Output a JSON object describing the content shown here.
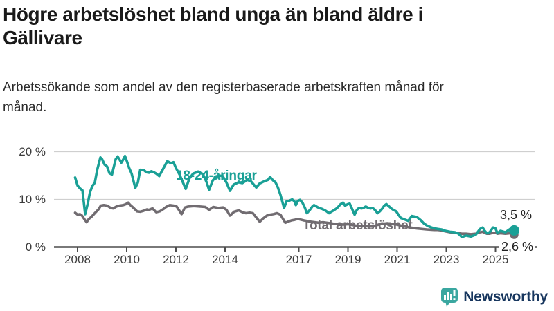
{
  "page": {
    "title": "Högre arbetslöshet bland unga än bland äldre i Gällivare",
    "subtitle": "Arbetssökande som andel av den registerbaserade arbetskraften månad för månad."
  },
  "colors": {
    "youth": "#1aa096",
    "total": "#716c71",
    "grid": "#cfcfcf",
    "axis": "#4d4d4d",
    "tick_text": "#3c3c3c",
    "logo_teal": "#3aa7a0",
    "logo_text": "#17365e"
  },
  "chart_data": {
    "type": "line",
    "x_ticks": [
      2008,
      2010,
      2012,
      2014,
      2017,
      2019,
      2021,
      2023,
      2025
    ],
    "y_ticks": [
      {
        "value": 0,
        "label": "0 %"
      },
      {
        "value": 10,
        "label": "10 %"
      },
      {
        "value": 20,
        "label": "20 %"
      }
    ],
    "xlim": [
      2007.9,
      2025.9
    ],
    "ylim": [
      0,
      21
    ],
    "grid": true,
    "legend_position": "inline-labels",
    "series": [
      {
        "name": "18-24-åringar",
        "color": "#1aa096",
        "end_label": "3,5 %",
        "end_value": 3.5,
        "points": [
          [
            2007.9,
            14.6
          ],
          [
            2008.0,
            12.9
          ],
          [
            2008.1,
            12.3
          ],
          [
            2008.2,
            11.9
          ],
          [
            2008.31,
            6.9
          ],
          [
            2008.42,
            9.2
          ],
          [
            2008.5,
            11.4
          ],
          [
            2008.6,
            12.8
          ],
          [
            2008.7,
            13.5
          ],
          [
            2008.8,
            16.2
          ],
          [
            2008.93,
            18.8
          ],
          [
            2009.0,
            18.4
          ],
          [
            2009.1,
            17.3
          ],
          [
            2009.2,
            16.9
          ],
          [
            2009.3,
            15.5
          ],
          [
            2009.4,
            15.2
          ],
          [
            2009.55,
            18.4
          ],
          [
            2009.63,
            19.0
          ],
          [
            2009.7,
            18.4
          ],
          [
            2009.78,
            17.7
          ],
          [
            2009.85,
            18.3
          ],
          [
            2009.93,
            19.1
          ],
          [
            2010.0,
            18.1
          ],
          [
            2010.1,
            16.6
          ],
          [
            2010.2,
            15.4
          ],
          [
            2010.35,
            12.4
          ],
          [
            2010.45,
            13.5
          ],
          [
            2010.55,
            16.2
          ],
          [
            2010.7,
            16.1
          ],
          [
            2010.8,
            15.7
          ],
          [
            2010.9,
            15.6
          ],
          [
            2011.0,
            15.9
          ],
          [
            2011.1,
            15.7
          ],
          [
            2011.2,
            15.4
          ],
          [
            2011.32,
            14.9
          ],
          [
            2011.5,
            16.6
          ],
          [
            2011.65,
            18.0
          ],
          [
            2011.8,
            17.6
          ],
          [
            2011.9,
            17.8
          ],
          [
            2012.0,
            16.6
          ],
          [
            2012.15,
            15.2
          ],
          [
            2012.3,
            13.4
          ],
          [
            2012.4,
            12.2
          ],
          [
            2012.55,
            14.4
          ],
          [
            2012.7,
            15.4
          ],
          [
            2012.9,
            15.8
          ],
          [
            2013.1,
            15.3
          ],
          [
            2013.25,
            13.6
          ],
          [
            2013.35,
            12.0
          ],
          [
            2013.5,
            14.0
          ],
          [
            2013.7,
            15.0
          ],
          [
            2013.9,
            14.9
          ],
          [
            2014.05,
            13.6
          ],
          [
            2014.2,
            11.8
          ],
          [
            2014.35,
            13.1
          ],
          [
            2014.55,
            13.6
          ],
          [
            2014.7,
            13.4
          ],
          [
            2014.9,
            14.1
          ],
          [
            2015.05,
            13.8
          ],
          [
            2015.27,
            12.5
          ],
          [
            2015.4,
            13.3
          ],
          [
            2015.55,
            13.7
          ],
          [
            2015.75,
            14.1
          ],
          [
            2015.83,
            14.7
          ],
          [
            2015.95,
            14.0
          ],
          [
            2016.05,
            13.6
          ],
          [
            2016.15,
            12.5
          ],
          [
            2016.25,
            11.0
          ],
          [
            2016.4,
            8.2
          ],
          [
            2016.5,
            9.6
          ],
          [
            2016.6,
            9.7
          ],
          [
            2016.73,
            10.0
          ],
          [
            2016.82,
            9.6
          ],
          [
            2016.88,
            8.8
          ],
          [
            2016.96,
            9.7
          ],
          [
            2017.05,
            9.9
          ],
          [
            2017.15,
            9.3
          ],
          [
            2017.25,
            8.2
          ],
          [
            2017.33,
            7.1
          ],
          [
            2017.45,
            7.8
          ],
          [
            2017.55,
            8.5
          ],
          [
            2017.62,
            8.8
          ],
          [
            2017.72,
            8.5
          ],
          [
            2017.82,
            8.2
          ],
          [
            2017.95,
            8.0
          ],
          [
            2018.1,
            7.6
          ],
          [
            2018.23,
            7.1
          ],
          [
            2018.32,
            7.4
          ],
          [
            2018.45,
            7.8
          ],
          [
            2018.56,
            8.2
          ],
          [
            2018.7,
            9.0
          ],
          [
            2018.8,
            9.3
          ],
          [
            2018.88,
            8.7
          ],
          [
            2019.0,
            9.0
          ],
          [
            2019.07,
            9.1
          ],
          [
            2019.15,
            8.2
          ],
          [
            2019.27,
            6.8
          ],
          [
            2019.36,
            7.8
          ],
          [
            2019.45,
            8.2
          ],
          [
            2019.55,
            8.1
          ],
          [
            2019.63,
            8.2
          ],
          [
            2019.72,
            8.5
          ],
          [
            2019.83,
            8.2
          ],
          [
            2019.92,
            8.1
          ],
          [
            2020.0,
            8.2
          ],
          [
            2020.1,
            7.8
          ],
          [
            2020.2,
            7.1
          ],
          [
            2020.3,
            7.5
          ],
          [
            2020.4,
            8.1
          ],
          [
            2020.48,
            8.7
          ],
          [
            2020.56,
            9.0
          ],
          [
            2020.68,
            8.5
          ],
          [
            2020.76,
            8.1
          ],
          [
            2020.85,
            7.8
          ],
          [
            2020.96,
            7.5
          ],
          [
            2021.05,
            6.8
          ],
          [
            2021.15,
            6.1
          ],
          [
            2021.3,
            5.8
          ],
          [
            2021.45,
            5.5
          ],
          [
            2021.6,
            6.5
          ],
          [
            2021.8,
            6.3
          ],
          [
            2021.97,
            5.6
          ],
          [
            2022.1,
            4.9
          ],
          [
            2022.25,
            4.4
          ],
          [
            2022.4,
            4.1
          ],
          [
            2022.55,
            3.9
          ],
          [
            2022.65,
            3.8
          ],
          [
            2022.8,
            3.7
          ],
          [
            2022.96,
            3.4
          ],
          [
            2023.15,
            3.2
          ],
          [
            2023.35,
            3.1
          ],
          [
            2023.5,
            2.8
          ],
          [
            2023.63,
            2.1
          ],
          [
            2023.8,
            2.4
          ],
          [
            2024.0,
            2.2
          ],
          [
            2024.2,
            2.6
          ],
          [
            2024.37,
            3.8
          ],
          [
            2024.48,
            4.1
          ],
          [
            2024.56,
            3.4
          ],
          [
            2024.65,
            2.9
          ],
          [
            2024.76,
            3.1
          ],
          [
            2024.9,
            4.1
          ],
          [
            2025.0,
            3.9
          ],
          [
            2025.08,
            2.9
          ],
          [
            2025.2,
            3.4
          ],
          [
            2025.4,
            3.1
          ],
          [
            2025.6,
            3.8
          ],
          [
            2025.76,
            3.5
          ]
        ]
      },
      {
        "name": "Total arbetslöshet",
        "color": "#716c71",
        "end_label": "2,6 %",
        "end_value": 2.6,
        "points": [
          [
            2007.9,
            7.2
          ],
          [
            2008.0,
            6.8
          ],
          [
            2008.1,
            6.9
          ],
          [
            2008.18,
            6.6
          ],
          [
            2008.27,
            5.9
          ],
          [
            2008.37,
            5.2
          ],
          [
            2008.46,
            5.9
          ],
          [
            2008.56,
            6.3
          ],
          [
            2008.7,
            7.1
          ],
          [
            2008.85,
            7.9
          ],
          [
            2008.95,
            8.7
          ],
          [
            2009.07,
            8.8
          ],
          [
            2009.2,
            8.7
          ],
          [
            2009.35,
            8.2
          ],
          [
            2009.45,
            8.1
          ],
          [
            2009.58,
            8.5
          ],
          [
            2009.72,
            8.7
          ],
          [
            2009.86,
            8.8
          ],
          [
            2009.97,
            9.0
          ],
          [
            2010.06,
            9.3
          ],
          [
            2010.15,
            8.8
          ],
          [
            2010.28,
            8.2
          ],
          [
            2010.42,
            7.5
          ],
          [
            2010.55,
            7.4
          ],
          [
            2010.68,
            7.6
          ],
          [
            2010.82,
            7.9
          ],
          [
            2010.9,
            7.8
          ],
          [
            2011.05,
            8.1
          ],
          [
            2011.2,
            7.3
          ],
          [
            2011.35,
            7.5
          ],
          [
            2011.5,
            8.0
          ],
          [
            2011.6,
            8.4
          ],
          [
            2011.75,
            8.8
          ],
          [
            2011.9,
            8.7
          ],
          [
            2012.03,
            8.5
          ],
          [
            2012.12,
            7.8
          ],
          [
            2012.23,
            6.9
          ],
          [
            2012.37,
            8.3
          ],
          [
            2012.5,
            8.5
          ],
          [
            2012.73,
            8.6
          ],
          [
            2013.0,
            8.5
          ],
          [
            2013.2,
            8.4
          ],
          [
            2013.35,
            7.8
          ],
          [
            2013.52,
            8.4
          ],
          [
            2013.72,
            8.2
          ],
          [
            2013.92,
            8.3
          ],
          [
            2014.06,
            7.8
          ],
          [
            2014.2,
            6.6
          ],
          [
            2014.37,
            7.4
          ],
          [
            2014.56,
            7.7
          ],
          [
            2014.7,
            7.3
          ],
          [
            2014.85,
            7.1
          ],
          [
            2015.0,
            7.2
          ],
          [
            2015.13,
            7.1
          ],
          [
            2015.27,
            6.2
          ],
          [
            2015.41,
            5.3
          ],
          [
            2015.55,
            6.0
          ],
          [
            2015.7,
            6.6
          ],
          [
            2015.83,
            6.8
          ],
          [
            2015.97,
            6.9
          ],
          [
            2016.11,
            7.1
          ],
          [
            2016.25,
            6.8
          ],
          [
            2016.45,
            5.1
          ],
          [
            2016.6,
            5.4
          ],
          [
            2016.7,
            5.6
          ],
          [
            2016.82,
            5.7
          ],
          [
            2016.96,
            5.9
          ],
          [
            2017.2,
            5.6
          ],
          [
            2017.5,
            5.3
          ],
          [
            2017.8,
            5.1
          ],
          [
            2018.0,
            5.2
          ],
          [
            2018.4,
            4.9
          ],
          [
            2018.8,
            4.7
          ],
          [
            2019.0,
            4.8
          ],
          [
            2019.3,
            4.5
          ],
          [
            2019.6,
            4.4
          ],
          [
            2020.0,
            4.3
          ],
          [
            2020.3,
            4.8
          ],
          [
            2020.6,
            5.0
          ],
          [
            2021.0,
            4.7
          ],
          [
            2021.4,
            4.2
          ],
          [
            2021.8,
            3.9
          ],
          [
            2022.2,
            3.7
          ],
          [
            2022.5,
            3.6
          ],
          [
            2022.65,
            3.6
          ],
          [
            2022.8,
            3.5
          ],
          [
            2022.96,
            3.3
          ],
          [
            2023.15,
            3.1
          ],
          [
            2023.35,
            3.0
          ],
          [
            2023.52,
            2.9
          ],
          [
            2023.63,
            2.8
          ],
          [
            2023.8,
            2.8
          ],
          [
            2024.0,
            2.7
          ],
          [
            2024.2,
            2.8
          ],
          [
            2024.37,
            3.1
          ],
          [
            2024.48,
            3.2
          ],
          [
            2024.56,
            3.0
          ],
          [
            2024.65,
            2.8
          ],
          [
            2024.76,
            2.8
          ],
          [
            2024.9,
            3.0
          ],
          [
            2025.0,
            3.0
          ],
          [
            2025.08,
            2.8
          ],
          [
            2025.2,
            2.9
          ],
          [
            2025.4,
            2.8
          ],
          [
            2025.6,
            2.9
          ],
          [
            2025.76,
            2.6
          ]
        ]
      }
    ]
  },
  "footer": {
    "brand": "Newsworthy"
  }
}
